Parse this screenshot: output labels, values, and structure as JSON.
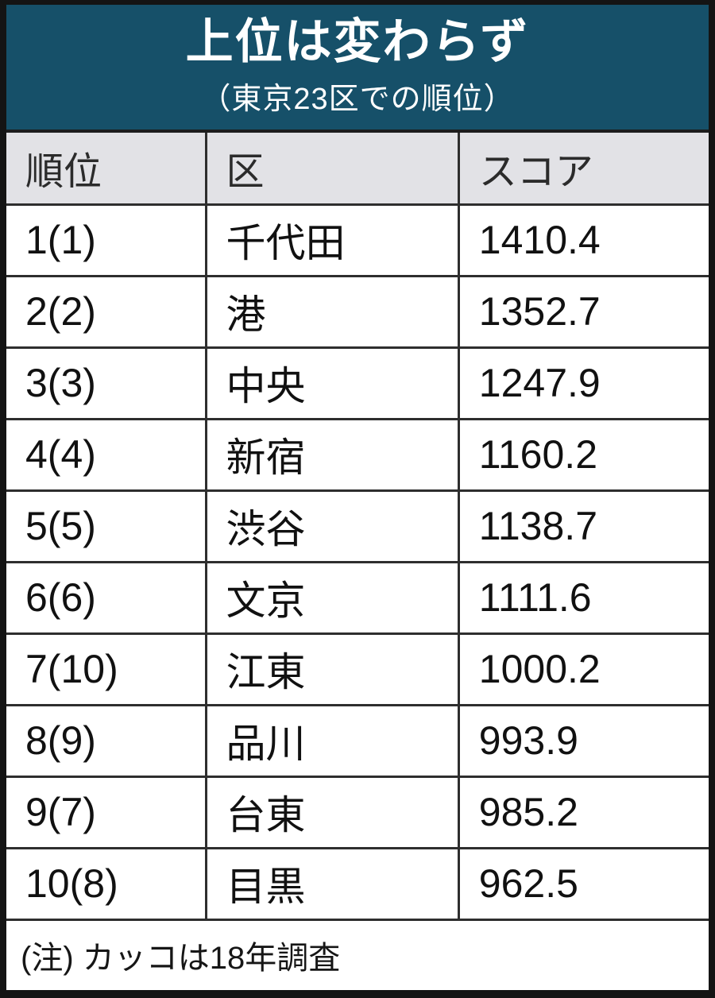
{
  "banner": {
    "title": "上位は変わらず",
    "subtitle": "（東京23区での順位）",
    "bg_color": "#165069",
    "text_color": "#ffffff"
  },
  "table": {
    "headers": [
      "順位",
      "区",
      "スコア"
    ],
    "header_bg_color": "#e2e2e6",
    "border_color": "#2e2e2e",
    "rows": [
      {
        "rank": "1(1)",
        "ward": "千代田",
        "score": "1410.4"
      },
      {
        "rank": "2(2)",
        "ward": "港",
        "score": "1352.7"
      },
      {
        "rank": "3(3)",
        "ward": "中央",
        "score": "1247.9"
      },
      {
        "rank": "4(4)",
        "ward": "新宿",
        "score": "1160.2"
      },
      {
        "rank": "5(5)",
        "ward": "渋谷",
        "score": "1138.7"
      },
      {
        "rank": "6(6)",
        "ward": "文京",
        "score": "1111.6"
      },
      {
        "rank": "7(10)",
        "ward": "江東",
        "score": "1000.2"
      },
      {
        "rank": "8(9)",
        "ward": "品川",
        "score": "993.9"
      },
      {
        "rank": "9(7)",
        "ward": "台東",
        "score": "985.2"
      },
      {
        "rank": "10(8)",
        "ward": "目黒",
        "score": "962.5"
      }
    ]
  },
  "note": "(注) カッコは18年調査",
  "chart_data": {
    "type": "table",
    "title": "上位は変わらず",
    "subtitle": "（東京23区での順位）",
    "columns": [
      "順位",
      "区",
      "スコア"
    ],
    "rows": [
      [
        "1(1)",
        "千代田",
        1410.4
      ],
      [
        "2(2)",
        "港",
        1352.7
      ],
      [
        "3(3)",
        "中央",
        1247.9
      ],
      [
        "4(4)",
        "新宿",
        1160.2
      ],
      [
        "5(5)",
        "渋谷",
        1138.7
      ],
      [
        "6(6)",
        "文京",
        1111.6
      ],
      [
        "7(10)",
        "江東",
        1000.2
      ],
      [
        "8(9)",
        "品川",
        993.9
      ],
      [
        "9(7)",
        "台東",
        985.2
      ],
      [
        "10(8)",
        "目黒",
        962.5
      ]
    ],
    "footnote": "(注) カッコは18年調査"
  }
}
